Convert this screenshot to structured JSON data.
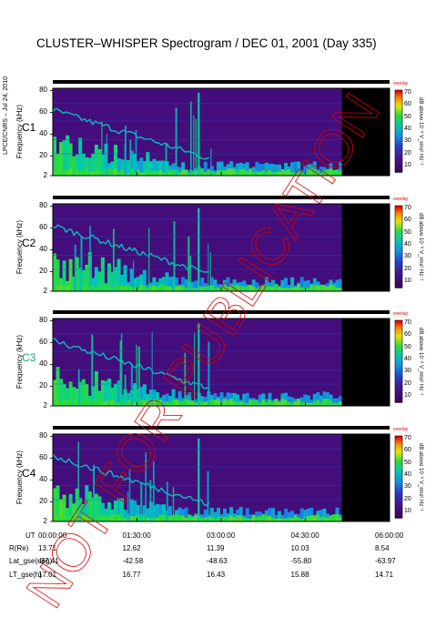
{
  "title": "CLUSTER–WHISPER Spectrogram / DEC 01, 2001 (Day 335)",
  "side_credit": "LPCE/CNRS – Jul 24, 2010",
  "watermark": "NOT FOR PUBLICATION",
  "colors": {
    "text": "#000000",
    "c3_label": "#19a37a",
    "watermark": "#e00000",
    "data_gap": "#000000"
  },
  "chart_data": {
    "type": "heatmap",
    "panels": [
      {
        "label": "C1",
        "ylabel": "Frequency (kHz)",
        "yticks": [
          2,
          20,
          40,
          60,
          80
        ],
        "ylim": [
          2,
          82
        ]
      },
      {
        "label": "C2",
        "ylabel": "Frequency (kHz)",
        "yticks": [
          2,
          20,
          40,
          60,
          80
        ],
        "ylim": [
          2,
          82
        ]
      },
      {
        "label": "C3",
        "ylabel": "Frequency (kHz)",
        "yticks": [
          2,
          20,
          40,
          60,
          80
        ],
        "ylim": [
          2,
          82
        ]
      },
      {
        "label": "C4",
        "ylabel": "Frequency (kHz)",
        "yticks": [
          2,
          20,
          40,
          60,
          80
        ],
        "ylim": [
          2,
          82
        ]
      }
    ],
    "colorbar": {
      "title": "overlay",
      "label": "dB above 10⁻⁸ V_rms² Hz⁻¹",
      "ticks": [
        10,
        20,
        30,
        40,
        50,
        60,
        70
      ],
      "range": [
        5,
        72
      ]
    },
    "data_end_hours": 5.15,
    "x_range_hours": [
      0,
      6
    ],
    "ephemeris": {
      "rows": [
        "UT",
        "R(Re)",
        "Lat_gse(deg)",
        "LT_gse(h)"
      ],
      "columns": [
        {
          "UT": "00:00:00",
          "R(Re)": "13.71",
          "Lat_gse(deg)": "-37.41",
          "LT_gse(h)": "17.01"
        },
        {
          "UT": "01:30:00",
          "R(Re)": "12.62",
          "Lat_gse(deg)": "-42.58",
          "LT_gse(h)": "16.77"
        },
        {
          "UT": "03:00:00",
          "R(Re)": "11.39",
          "Lat_gse(deg)": "-48.63",
          "LT_gse(h)": "16.43"
        },
        {
          "UT": "04:30:00",
          "R(Re)": "10.03",
          "Lat_gse(deg)": "-55.80",
          "LT_gse(h)": "15.88"
        },
        {
          "UT": "06:00:00",
          "R(Re)": "8.54",
          "Lat_gse(deg)": "-63.97",
          "LT_gse(h)": "14.71"
        }
      ]
    }
  }
}
